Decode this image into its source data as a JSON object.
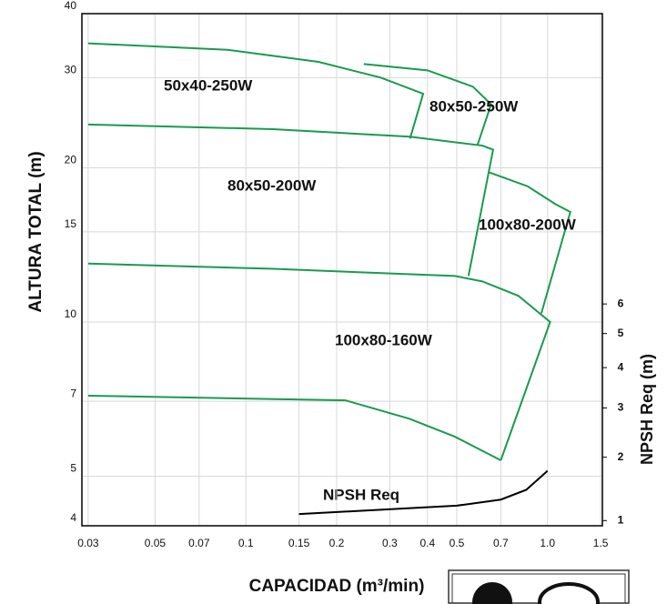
{
  "chart_data": {
    "type": "line",
    "x_label": "CAPACIDAD (m³/min)",
    "y_label": "ALTURA TOTAL (m)",
    "y2_label": "NPSH Req (m)",
    "annotation": "NPSH Req",
    "xlog": true,
    "ylog": true,
    "grid": true,
    "xlim": [
      0.0286,
      1.52
    ],
    "xticks": [
      0.03,
      0.05,
      0.07,
      0.1,
      0.15,
      0.2,
      0.3,
      0.4,
      0.5,
      0.7,
      {
        "value": 1.0,
        "label": "1.0"
      },
      1.5
    ],
    "ylim": [
      4,
      40
    ],
    "yticks": [
      4,
      5,
      7,
      10,
      15,
      20,
      30,
      40
    ],
    "y2lim": [
      0.93,
      27.6
    ],
    "y2ticks": [
      1,
      2,
      3,
      4,
      5,
      6
    ],
    "series": [
      {
        "name": "50x40-250W",
        "color": "#1a9a50",
        "x": [
          0.03,
          0.0868,
          0.174,
          0.28,
          0.387,
          0.35
        ],
        "values": [
          35.0,
          34.0,
          32.2,
          30.0,
          27.9,
          22.8
        ]
      },
      {
        "name": "80x50-250W",
        "color": "#1a9a50",
        "x": [
          0.246,
          0.4,
          0.566,
          0.65,
          0.585
        ],
        "values": [
          31.9,
          31.0,
          28.8,
          26.6,
          22.1
        ]
      },
      {
        "name": "80x50-200W",
        "color": "#1a9a50",
        "x": [
          0.03,
          0.123,
          0.349,
          0.608,
          0.66,
          0.547
        ],
        "values": [
          24.3,
          23.8,
          23.0,
          22.1,
          21.7,
          12.3
        ]
      },
      {
        "name": "100x80-200W",
        "color": "#1a9a50",
        "x": [
          0.64,
          0.86,
          1.06,
          1.19,
          0.954
        ],
        "values": [
          19.6,
          18.4,
          17.0,
          16.4,
          10.4
        ]
      },
      {
        "name": "100x80-160W",
        "color": "#1a9a50",
        "x": [
          0.03,
          0.123,
          0.493,
          0.608,
          0.8,
          1.02,
          0.7
        ],
        "values": [
          13.0,
          12.7,
          12.3,
          12.0,
          11.25,
          10.0,
          5.37
        ]
      },
      {
        "color": "#1a9a50",
        "x": [
          0.03,
          0.214,
          0.349,
          0.493,
          0.7
        ],
        "values": [
          7.18,
          7.03,
          6.47,
          5.97,
          5.37
        ]
      },
      {
        "color": "#000000",
        "axis": "y2",
        "x": [
          0.15,
          0.5,
          0.7,
          0.85,
          1.0
        ],
        "values": [
          1.09,
          1.21,
          1.3,
          1.45,
          1.76
        ]
      }
    ]
  }
}
